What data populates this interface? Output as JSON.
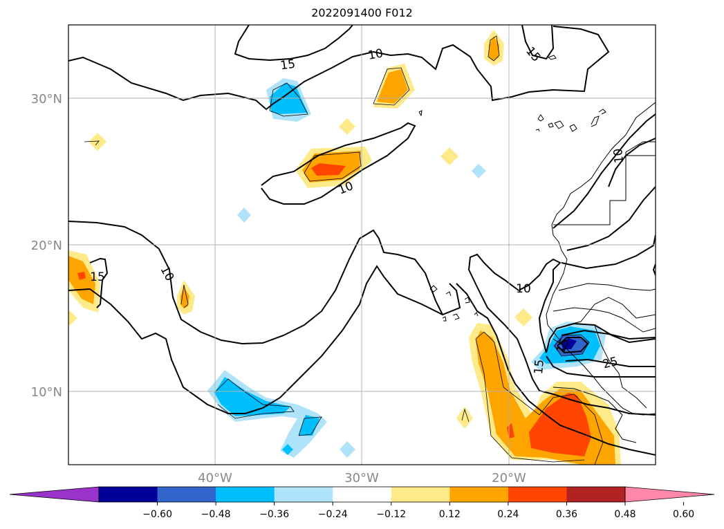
{
  "title": "2022091400 F012",
  "lon_ticks": [
    "40°W",
    "30°W",
    "20°W"
  ],
  "lat_ticks": [
    "30°N",
    "20°N",
    "10°N"
  ],
  "contour_labels": [
    "15",
    "10",
    "10",
    "15",
    "10",
    "10",
    "15",
    "15",
    "10",
    "15",
    "25"
  ],
  "colorbar": {
    "ticks": [
      "−0.60",
      "−0.48",
      "−0.36",
      "−0.24",
      "−0.12",
      "0.12",
      "0.24",
      "0.36",
      "0.48",
      "0.60"
    ],
    "colors": [
      "#9933cc",
      "#000099",
      "#3366cc",
      "#00bfff",
      "#aee3fa",
      "#ffffff",
      "#ffea8a",
      "#ffa500",
      "#ff4500",
      "#b22222",
      "#ff88aa"
    ]
  }
}
